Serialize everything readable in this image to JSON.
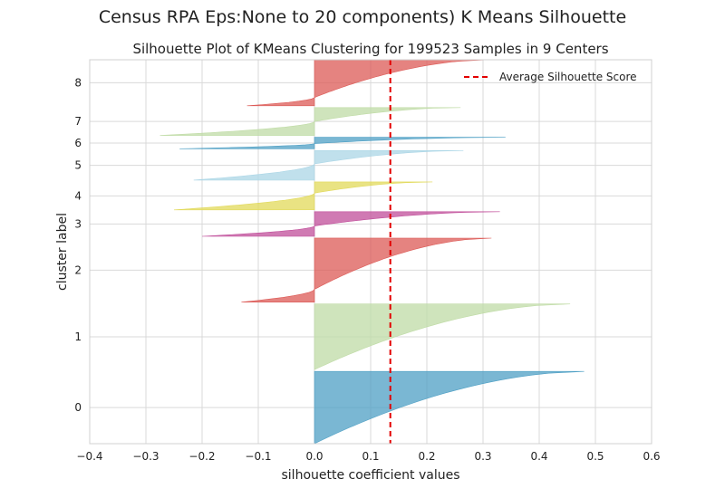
{
  "figure": {
    "suptitle": "Census RPA Eps:None to 20 components) K Means Silhouette"
  },
  "chart_data": {
    "type": "area",
    "title": "Silhouette Plot of KMeans Clustering for 199523 Samples in 9 Centers",
    "xlabel": "silhouette coefficient values",
    "ylabel": "cluster label",
    "xlim": [
      -0.4,
      0.6
    ],
    "xticks": [
      -0.4,
      -0.3,
      -0.2,
      -0.1,
      0.0,
      0.1,
      0.2,
      0.3,
      0.4,
      0.5,
      0.6
    ],
    "yticks": [
      "0",
      "1",
      "2",
      "3",
      "4",
      "5",
      "6",
      "7",
      "8"
    ],
    "grid": true,
    "legend_position": "top-right",
    "average_line": {
      "label": "Average Silhouette Score",
      "value": 0.135,
      "color": "#e30000"
    },
    "clusters": [
      {
        "label": "0",
        "color": "#4d9fc4",
        "max": 0.48,
        "min": 0.0,
        "pos_frac": 1.0,
        "n_points": 44000
      },
      {
        "label": "1",
        "color": "#bfdba5",
        "max": 0.455,
        "min": 0.0,
        "pos_frac": 1.0,
        "n_points": 40000
      },
      {
        "label": "2",
        "color": "#dc5955",
        "max": 0.315,
        "min": -0.13,
        "pos_frac": 0.8,
        "n_points": 39000
      },
      {
        "label": "3",
        "color": "#c04d9a",
        "max": 0.33,
        "min": -0.2,
        "pos_frac": 0.58,
        "n_points": 15000
      },
      {
        "label": "4",
        "color": "#e1d95a",
        "max": 0.21,
        "min": -0.25,
        "pos_frac": 0.4,
        "n_points": 17000
      },
      {
        "label": "5",
        "color": "#abd6e6",
        "max": 0.265,
        "min": -0.215,
        "pos_frac": 0.45,
        "n_points": 18000
      },
      {
        "label": "6",
        "color": "#4d9fc4",
        "max": 0.34,
        "min": -0.24,
        "pos_frac": 0.55,
        "n_points": 7000
      },
      {
        "label": "7",
        "color": "#bfdba5",
        "max": 0.26,
        "min": -0.275,
        "pos_frac": 0.5,
        "n_points": 17000
      },
      {
        "label": "8",
        "color": "#dc5955",
        "max": 0.31,
        "min": -0.12,
        "pos_frac": 0.82,
        "n_points": 28000
      }
    ]
  }
}
